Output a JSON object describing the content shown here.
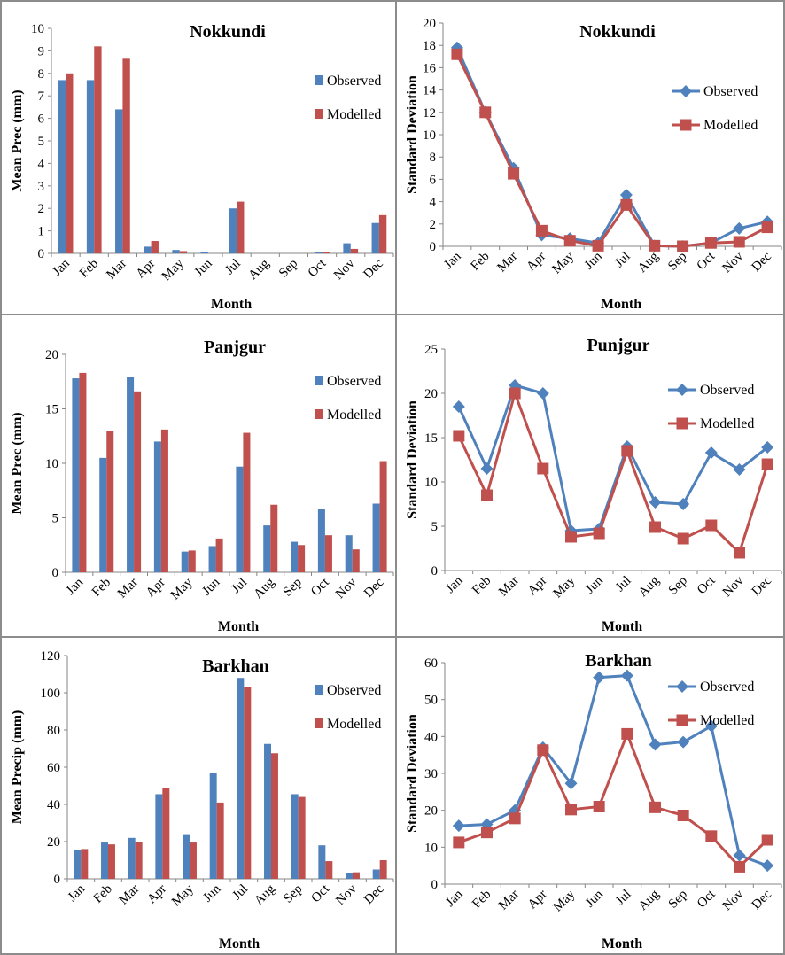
{
  "colors": {
    "observed": "#4F81BD",
    "modelled": "#C0504D",
    "axis": "#868686",
    "border": "#8c8c8c"
  },
  "chart_data": [
    {
      "type": "bar",
      "title": "Nokkundi",
      "xlabel": "Month",
      "ylabel": "Mean Prec (mm)",
      "ylim": [
        0,
        10
      ],
      "ystep": 1,
      "grid": false,
      "legend": "right",
      "categories": [
        "Jan",
        "Feb",
        "Mar",
        "Apr",
        "May",
        "Jun",
        "Jul",
        "Aug",
        "Sep",
        "Oct",
        "Nov",
        "Dec"
      ],
      "series": [
        {
          "name": "Observed",
          "values": [
            7.7,
            7.7,
            6.4,
            0.3,
            0.15,
            0.05,
            2.0,
            0,
            0,
            0.05,
            0.45,
            1.35
          ]
        },
        {
          "name": "Modelled",
          "values": [
            8.0,
            9.2,
            8.65,
            0.55,
            0.1,
            0.0,
            2.3,
            0,
            0,
            0.05,
            0.2,
            1.7
          ]
        }
      ]
    },
    {
      "type": "line",
      "title": "Nokkundi",
      "xlabel": "Month",
      "ylabel": "Standard Deviation",
      "ylim": [
        0,
        20
      ],
      "ystep": 2,
      "grid": false,
      "legend": "right",
      "categories": [
        "Jan",
        "Feb",
        "Mar",
        "Apr",
        "May",
        "Jun",
        "Jul",
        "Aug",
        "Sep",
        "Oct",
        "Nov",
        "Dec"
      ],
      "series": [
        {
          "name": "Observed",
          "values": [
            17.8,
            12.0,
            7.0,
            1.0,
            0.7,
            0.3,
            4.6,
            0.05,
            0.0,
            0.3,
            1.6,
            2.2
          ]
        },
        {
          "name": "Modelled",
          "values": [
            17.2,
            12.0,
            6.5,
            1.4,
            0.5,
            0.05,
            3.7,
            0.05,
            0.0,
            0.3,
            0.4,
            1.7
          ]
        }
      ]
    },
    {
      "type": "bar",
      "title": "Panjgur",
      "xlabel": "Month",
      "ylabel": "Mean Prec (mm)",
      "ylim": [
        0,
        20
      ],
      "ystep": 5,
      "grid": false,
      "legend": "right",
      "categories": [
        "Jan",
        "Feb",
        "Mar",
        "Apr",
        "May",
        "Jun",
        "Jul",
        "Aug",
        "Sep",
        "Oct",
        "Nov",
        "Dec"
      ],
      "series": [
        {
          "name": "Observed",
          "values": [
            17.8,
            10.5,
            17.9,
            12.0,
            1.9,
            2.4,
            9.7,
            4.3,
            2.8,
            5.8,
            3.4,
            6.3
          ]
        },
        {
          "name": "Modelled",
          "values": [
            18.3,
            13.0,
            16.6,
            13.1,
            2.0,
            3.1,
            12.8,
            6.2,
            2.5,
            3.4,
            2.1,
            10.2
          ]
        }
      ]
    },
    {
      "type": "line",
      "title": "Punjgur",
      "xlabel": "Month",
      "ylabel": "Standard Deviation",
      "ylim": [
        0,
        25
      ],
      "ystep": 5,
      "grid": false,
      "legend": "right",
      "categories": [
        "Jan",
        "Feb",
        "Mar",
        "Apr",
        "May",
        "Jun",
        "Jul",
        "Aug",
        "Sep",
        "Oct",
        "Nov",
        "Dec"
      ],
      "series": [
        {
          "name": "Observed",
          "values": [
            18.5,
            11.5,
            20.9,
            20.0,
            4.5,
            4.7,
            14.0,
            7.7,
            7.5,
            13.3,
            11.4,
            13.9
          ]
        },
        {
          "name": "Modelled",
          "values": [
            15.2,
            8.5,
            20.0,
            11.5,
            3.8,
            4.2,
            13.5,
            4.9,
            3.6,
            5.1,
            2.0,
            12.0
          ]
        }
      ]
    },
    {
      "type": "bar",
      "title": "Barkhan",
      "xlabel": "Month",
      "ylabel": "Mean Precip (mm)",
      "ylim": [
        0,
        120
      ],
      "ystep": 20,
      "grid": false,
      "legend": "right",
      "categories": [
        "Jan",
        "Feb",
        "Mar",
        "Apr",
        "May",
        "Jun",
        "Jul",
        "Aug",
        "Sep",
        "Oct",
        "Nov",
        "Dec"
      ],
      "series": [
        {
          "name": "Observed",
          "values": [
            15.5,
            19.5,
            22.0,
            45.5,
            24.0,
            57.0,
            108.0,
            72.5,
            45.5,
            18.0,
            3.0,
            5.0
          ]
        },
        {
          "name": "Modelled",
          "values": [
            16.0,
            18.5,
            20.0,
            49.0,
            19.5,
            41.0,
            103.0,
            67.5,
            44.0,
            9.5,
            3.5,
            10.0
          ]
        }
      ]
    },
    {
      "type": "line",
      "title": "Barkhan",
      "xlabel": "Month",
      "ylabel": "Standard Deviation",
      "ylim": [
        0,
        60
      ],
      "ystep": 10,
      "grid": false,
      "legend": "top-right",
      "categories": [
        "Jan",
        "Feb",
        "Mar",
        "Apr",
        "May",
        "Jun",
        "Jul",
        "Aug",
        "Sep",
        "Oct",
        "Nov",
        "Dec"
      ],
      "series": [
        {
          "name": "Observed",
          "values": [
            15.8,
            16.2,
            20.0,
            37.0,
            27.3,
            56.0,
            56.5,
            37.8,
            38.5,
            42.8,
            7.8,
            5.0
          ]
        },
        {
          "name": "Modelled",
          "values": [
            11.3,
            14.0,
            17.8,
            36.3,
            20.2,
            21.0,
            40.7,
            20.8,
            18.6,
            13.0,
            4.7,
            12.0
          ]
        }
      ]
    }
  ]
}
